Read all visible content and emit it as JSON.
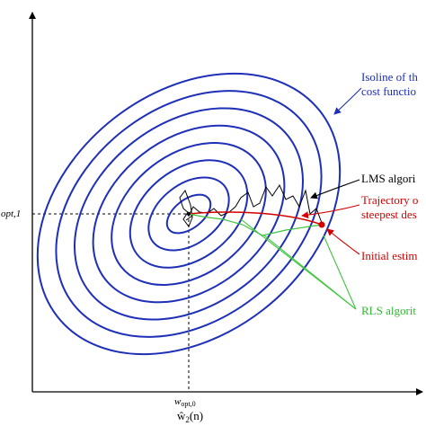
{
  "colors": {
    "isoline": "#1e2fb8",
    "lms": "#000000",
    "steepest": "#d40000",
    "initial": "#d40000",
    "rls": "#3ec43e",
    "axis": "#000000"
  },
  "labels": {
    "isoline_line1": "Isoline of th",
    "isoline_line2": "cost functio",
    "lms": "LMS algori",
    "steepest_line1": "Trajectory o",
    "steepest_line2": "steepest des",
    "initial": "Initial estim",
    "rls": "RLS algorit"
  },
  "axes": {
    "y_tick_label": "opt,1",
    "x_tick_main": "w",
    "x_tick_sub": "opt,0",
    "x_axis_main": "ŵ",
    "x_axis_sub": "2",
    "x_axis_suffix": "(n)"
  },
  "isoline_count": 8
}
